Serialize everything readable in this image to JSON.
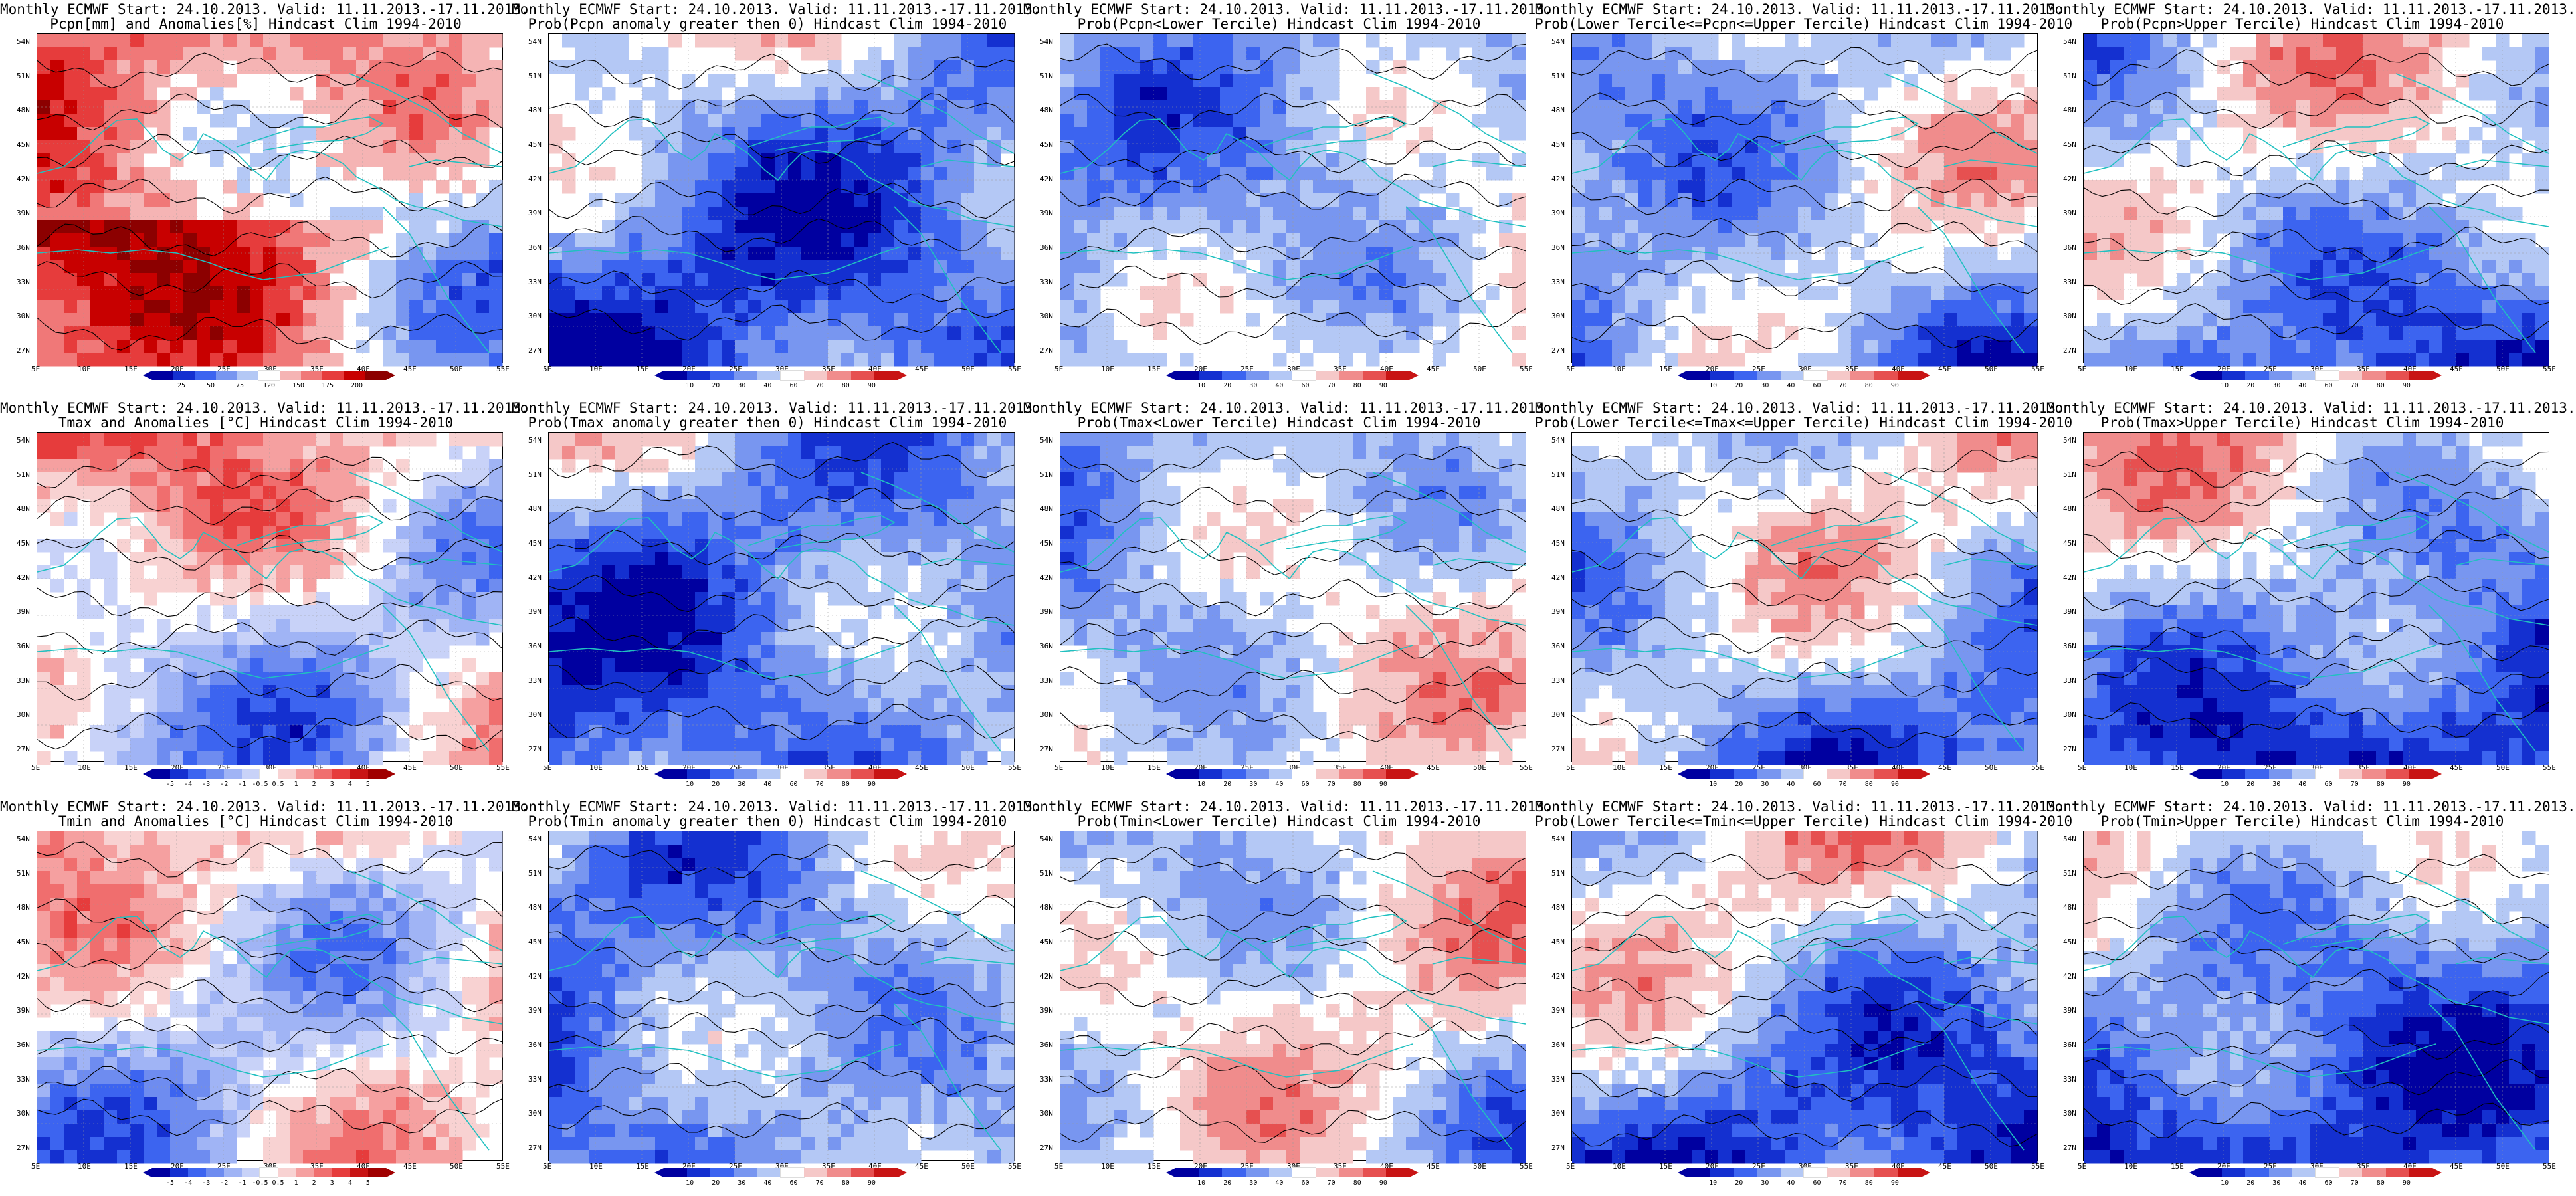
{
  "row_titles": [
    [
      "Monthly ECMWF Start: 24.10.2013. Valid: 11.11.2013.-17.11.2013.",
      "Pcpn[mm] and Anomalies[%] Hindcast Clim 1994-2010"
    ],
    [
      "Monthly ECMWF Start: 24.10.2013. Valid: 11.11.2013.-17.11.2013.",
      "Tmax and Anomalies [°C] Hindcast Clim 1994-2010"
    ],
    [
      "Monthly ECMWF Start: 24.10.2013. Valid: 11.11.2013.-17.11.2013.",
      "Tmin and Anomalies [°C] Hindcast Clim 1994-2010"
    ]
  ],
  "panels": [
    {
      "row": 0,
      "col": 0,
      "line1": "Monthly ECMWF Start: 24.10.2013. Valid: 11.11.2013.-17.11.2013.",
      "line2": "Pcpn[mm] and Anomalies[%] Hindcast Clim 1994-2010",
      "scale": "pcpn",
      "seed": 11
    },
    {
      "row": 0,
      "col": 1,
      "line1": "Monthly ECMWF Start: 24.10.2013. Valid: 11.11.2013.-17.11.2013.",
      "line2": "Prob(Pcpn anomaly greater then 0) Hindcast Clim 1994-2010",
      "scale": "prob",
      "seed": 12
    },
    {
      "row": 0,
      "col": 2,
      "line1": "Monthly ECMWF Start: 24.10.2013. Valid: 11.11.2013.-17.11.2013.",
      "line2": "Prob(Pcpn<Lower Tercile) Hindcast Clim 1994-2010",
      "scale": "prob",
      "seed": 13
    },
    {
      "row": 0,
      "col": 3,
      "line1": "Monthly ECMWF Start: 24.10.2013. Valid: 11.11.2013.-17.11.2013.",
      "line2": "Prob(Lower Tercile<=Pcpn<=Upper Tercile) Hindcast Clim 1994-2010",
      "scale": "prob",
      "seed": 14
    },
    {
      "row": 0,
      "col": 4,
      "line1": "Monthly ECMWF Start: 24.10.2013. Valid: 11.11.2013.-17.11.2013.",
      "line2": "Prob(Pcpn>Upper Tercile) Hindcast Clim 1994-2010",
      "scale": "prob",
      "seed": 15
    },
    {
      "row": 1,
      "col": 0,
      "line1": "Monthly ECMWF Start: 24.10.2013. Valid: 11.11.2013.-17.11.2013.",
      "line2": "Tmax and Anomalies [°C] Hindcast Clim 1994-2010",
      "scale": "temp",
      "seed": 21
    },
    {
      "row": 1,
      "col": 1,
      "line1": "Monthly ECMWF Start: 24.10.2013. Valid: 11.11.2013.-17.11.2013.",
      "line2": "Prob(Tmax anomaly greater then 0) Hindcast Clim 1994-2010",
      "scale": "prob",
      "seed": 22
    },
    {
      "row": 1,
      "col": 2,
      "line1": "Monthly ECMWF Start: 24.10.2013. Valid: 11.11.2013.-17.11.2013.",
      "line2": "Prob(Tmax<Lower Tercile) Hindcast Clim 1994-2010",
      "scale": "prob",
      "seed": 23
    },
    {
      "row": 1,
      "col": 3,
      "line1": "Monthly ECMWF Start: 24.10.2013. Valid: 11.11.2013.-17.11.2013.",
      "line2": "Prob(Lower Tercile<=Tmax<=Upper Tercile) Hindcast Clim 1994-2010",
      "scale": "prob",
      "seed": 24
    },
    {
      "row": 1,
      "col": 4,
      "line1": "Monthly ECMWF Start: 24.10.2013. Valid: 11.11.2013.-17.11.2013.",
      "line2": "Prob(Tmax>Upper Tercile) Hindcast Clim 1994-2010",
      "scale": "prob",
      "seed": 25
    },
    {
      "row": 2,
      "col": 0,
      "line1": "Monthly ECMWF Start: 24.10.2013. Valid: 11.11.2013.-17.11.2013.",
      "line2": "Tmin and Anomalies [°C] Hindcast Clim 1994-2010",
      "scale": "temp",
      "seed": 31
    },
    {
      "row": 2,
      "col": 1,
      "line1": "Monthly ECMWF Start: 24.10.2013. Valid: 11.11.2013.-17.11.2013.",
      "line2": "Prob(Tmin anomaly greater then 0) Hindcast Clim 1994-2010",
      "scale": "prob",
      "seed": 32
    },
    {
      "row": 2,
      "col": 2,
      "line1": "Monthly ECMWF Start: 24.10.2013. Valid: 11.11.2013.-17.11.2013.",
      "line2": "Prob(Tmin<Lower Tercile) Hindcast Clim 1994-2010",
      "scale": "prob",
      "seed": 33
    },
    {
      "row": 2,
      "col": 3,
      "line1": "Monthly ECMWF Start: 24.10.2013. Valid: 11.11.2013.-17.11.2013.",
      "line2": "Prob(Lower Tercile<=Tmin<=Upper Tercile) Hindcast Clim 1994-2010",
      "scale": "prob",
      "seed": 34
    },
    {
      "row": 2,
      "col": 4,
      "line1": "Monthly ECMWF Start: 24.10.2013. Valid: 11.11.2013.-17.11.2013.",
      "line2": "Prob(Tmin>Upper Tercile) Hindcast Clim 1994-2010",
      "scale": "prob",
      "seed": 35
    }
  ],
  "axes": {
    "lat_labels": [
      "54N",
      "51N",
      "48N",
      "45N",
      "42N",
      "39N",
      "36N",
      "33N",
      "30N",
      "27N"
    ],
    "lon_labels": [
      "5E",
      "10E",
      "15E",
      "20E",
      "25E",
      "30E",
      "35E",
      "40E",
      "45E",
      "50E",
      "55E"
    ]
  },
  "colorbars": {
    "pcpn": {
      "ticks": [
        "25",
        "50",
        "75",
        "120",
        "150",
        "175",
        "200"
      ],
      "colors": [
        "#0000a0",
        "#1430d0",
        "#3c64f0",
        "#7896f0",
        "#b4c8f5",
        "#ffffff",
        "#f5b4b4",
        "#f07878",
        "#e63c3c",
        "#c80000",
        "#8c0000"
      ]
    },
    "temp": {
      "ticks": [
        "-5",
        "-4",
        "-3",
        "-2",
        "-1",
        "-0.5",
        "0.5",
        "1",
        "2",
        "3",
        "4",
        "5"
      ],
      "colors": [
        "#0000a0",
        "#1430d0",
        "#3c64f0",
        "#6e8cf0",
        "#a0b4f5",
        "#c8d2f8",
        "#ffffff",
        "#f8d2d2",
        "#f5a0a0",
        "#f06e6e",
        "#e63c3c",
        "#c81414",
        "#a00000"
      ]
    },
    "prob": {
      "ticks": [
        "10",
        "20",
        "30",
        "40",
        "60",
        "70",
        "80",
        "90"
      ],
      "colors": [
        "#0000a0",
        "#1430d0",
        "#3c64f0",
        "#7896f0",
        "#b4c8f5",
        "#ffffff",
        "#f5c8c8",
        "#f08c8c",
        "#e65050",
        "#c81414"
      ]
    }
  },
  "colors": {
    "coastline": "#20c0c0",
    "contour": "#000000",
    "background": "#ffffff"
  }
}
